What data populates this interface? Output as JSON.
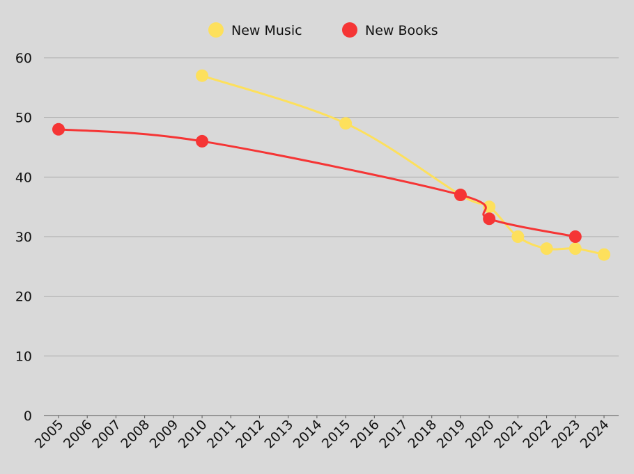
{
  "chart_data": {
    "type": "line",
    "xlim": [
      2005,
      2024
    ],
    "xticks": [
      2005,
      2006,
      2007,
      2008,
      2009,
      2010,
      2011,
      2012,
      2013,
      2014,
      2015,
      2016,
      2017,
      2018,
      2019,
      2020,
      2021,
      2022,
      2023,
      2024
    ],
    "ylim": [
      0,
      60
    ],
    "yticks": [
      0,
      10,
      20,
      30,
      40,
      50,
      60
    ],
    "grid": true,
    "legend": "top",
    "series": [
      {
        "name": "New Music",
        "color": "#fde05c",
        "x": [
          2010,
          2015,
          2019,
          2020,
          2021,
          2022,
          2023,
          2024
        ],
        "values": [
          57,
          49,
          37,
          35,
          30,
          28,
          28,
          27
        ]
      },
      {
        "name": "New Books",
        "color": "#f53535",
        "x": [
          2005,
          2010,
          2019,
          2020,
          2023
        ],
        "values": [
          48,
          46,
          37,
          33,
          30
        ]
      }
    ]
  }
}
